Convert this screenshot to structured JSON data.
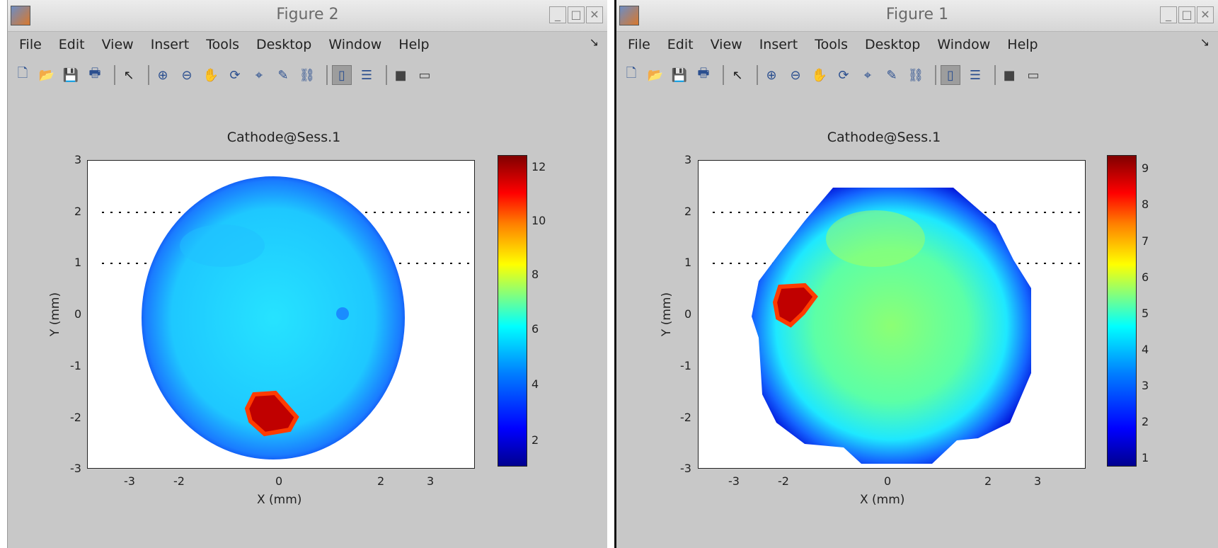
{
  "figures": [
    {
      "id": "left",
      "title": "Figure 2",
      "menu": [
        "File",
        "Edit",
        "View",
        "Insert",
        "Tools",
        "Desktop",
        "Window",
        "Help"
      ],
      "plot_title": "Cathode@Sess.1",
      "xlabel": "X (mm)",
      "ylabel": "Y (mm)",
      "yticks": [
        "3",
        "2",
        "1",
        "0",
        "-1",
        "-2",
        "-3"
      ],
      "xticks": [
        "-3",
        "-2",
        "0",
        "2",
        "3"
      ],
      "colorbar_ticks": [
        "12",
        "10",
        "8",
        "6",
        "4",
        "2"
      ]
    },
    {
      "id": "right",
      "title": "Figure 1",
      "menu": [
        "File",
        "Edit",
        "View",
        "Insert",
        "Tools",
        "Desktop",
        "Window",
        "Help"
      ],
      "plot_title": "Cathode@Sess.1",
      "xlabel": "X (mm)",
      "ylabel": "Y (mm)",
      "yticks": [
        "3",
        "2",
        "1",
        "0",
        "-1",
        "-2",
        "-3"
      ],
      "xticks": [
        "-3",
        "-2",
        "0",
        "2",
        "3"
      ],
      "colorbar_ticks": [
        "9",
        "8",
        "7",
        "6",
        "5",
        "4",
        "3",
        "2",
        "1"
      ]
    }
  ],
  "icons": [
    "new-figure-icon",
    "open-file-icon",
    "save-icon",
    "print-icon",
    "pointer-icon",
    "zoom-in-icon",
    "zoom-out-icon",
    "pan-icon",
    "rotate-icon",
    "data-cursor-icon",
    "brush-icon",
    "link-icon",
    "colorbar-icon",
    "legend-icon",
    "hide-tools-icon",
    "show-tools-icon"
  ],
  "colormap": "jet"
}
